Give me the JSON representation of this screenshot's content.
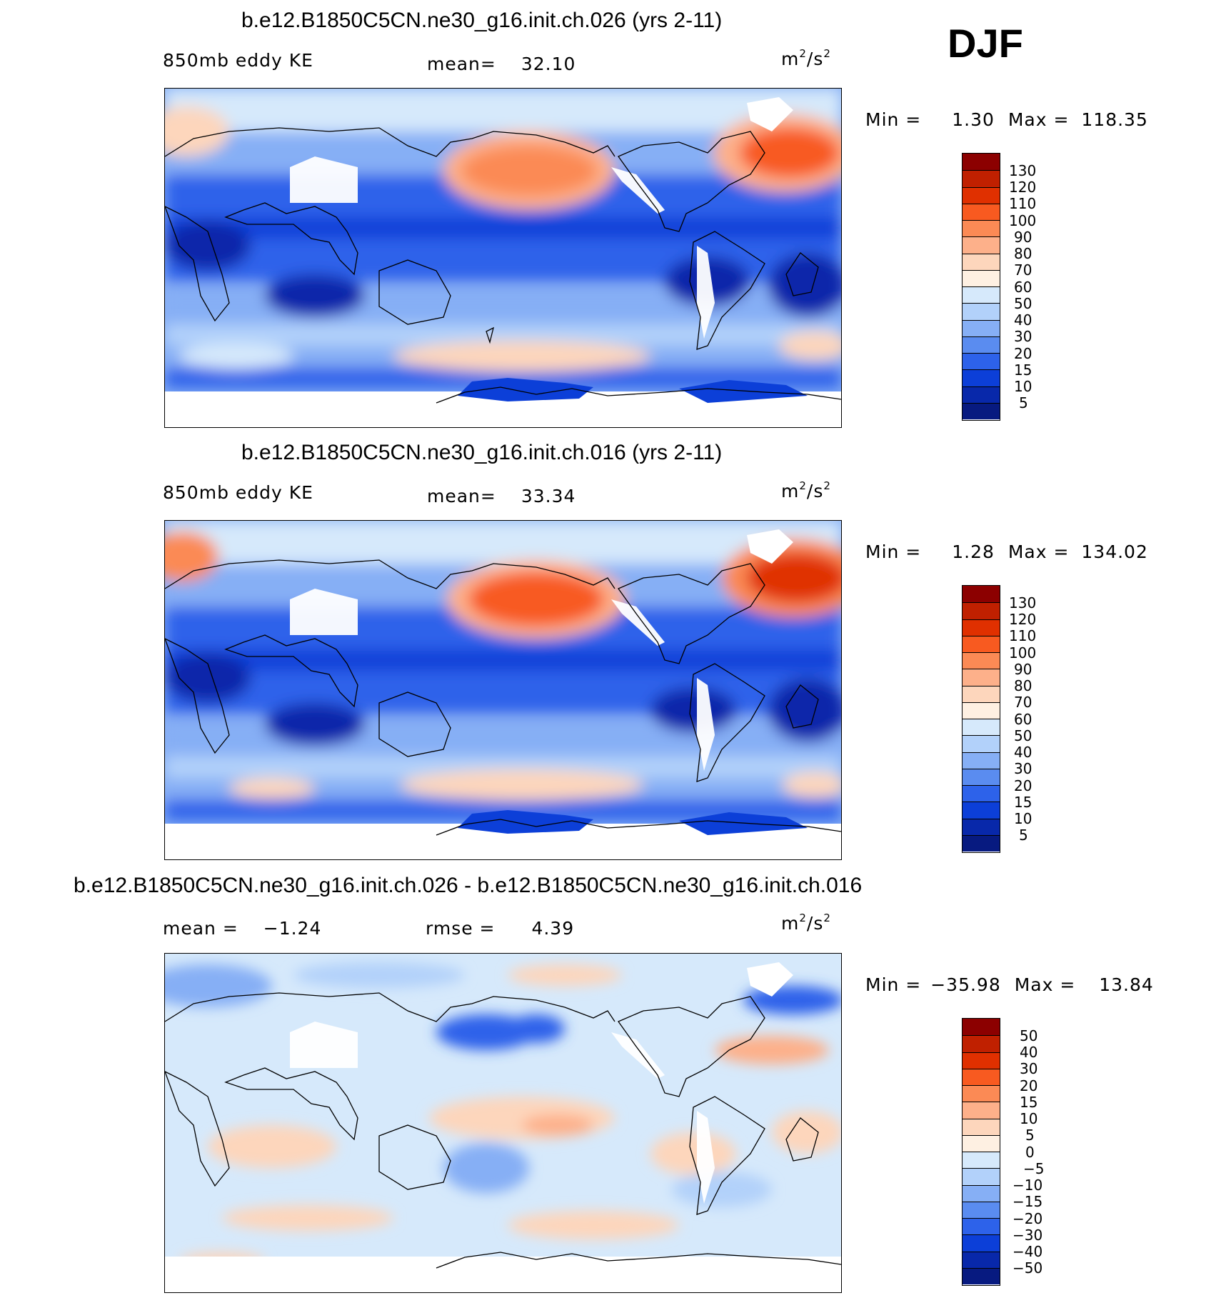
{
  "season": "DJF",
  "panels": [
    {
      "title": "b.e12.B1850C5CN.ne30_g16.init.ch.026 (yrs 2-11)",
      "left_label": "850mb eddy KE",
      "center_label": "mean=",
      "center_value": "32.10",
      "units_base": "m",
      "units_sup1": "2",
      "units_mid": "/s",
      "units_sup2": "2",
      "min_label": "Min =",
      "min_value": "1.30",
      "max_label": "Max =",
      "max_value": "118.35",
      "colorbar": {
        "labels": [
          "130",
          "120",
          "110",
          "100",
          "90",
          "80",
          "70",
          "60",
          "50",
          "40",
          "30",
          "20",
          "15",
          "10",
          "5"
        ],
        "colors": [
          "#8c0000",
          "#c02000",
          "#e03000",
          "#f85a20",
          "#fb8a55",
          "#fdb08a",
          "#fdd6bc",
          "#fef0e2",
          "#d6e9fb",
          "#b2d1fa",
          "#86aff5",
          "#5a8cf0",
          "#2d62ea",
          "#0c3fd8",
          "#0828aa",
          "#071a80"
        ]
      }
    },
    {
      "title": "b.e12.B1850C5CN.ne30_g16.init.ch.016 (yrs 2-11)",
      "left_label": "850mb eddy KE",
      "center_label": "mean=",
      "center_value": "33.34",
      "units_base": "m",
      "units_sup1": "2",
      "units_mid": "/s",
      "units_sup2": "2",
      "min_label": "Min =",
      "min_value": "1.28",
      "max_label": "Max =",
      "max_value": "134.02",
      "colorbar": {
        "labels": [
          "130",
          "120",
          "110",
          "100",
          "90",
          "80",
          "70",
          "60",
          "50",
          "40",
          "30",
          "20",
          "15",
          "10",
          "5"
        ],
        "colors": [
          "#8c0000",
          "#c02000",
          "#e03000",
          "#f85a20",
          "#fb8a55",
          "#fdb08a",
          "#fdd6bc",
          "#fef0e2",
          "#d6e9fb",
          "#b2d1fa",
          "#86aff5",
          "#5a8cf0",
          "#2d62ea",
          "#0c3fd8",
          "#0828aa",
          "#071a80"
        ]
      }
    },
    {
      "title": "b.e12.B1850C5CN.ne30_g16.init.ch.026 - b.e12.B1850C5CN.ne30_g16.init.ch.016",
      "left_label": "mean =",
      "left_value": "−1.24",
      "center_label": "rmse =",
      "center_value": "4.39",
      "units_base": "m",
      "units_sup1": "2",
      "units_mid": "/s",
      "units_sup2": "2",
      "min_label": "Min =",
      "min_value": "−35.98",
      "max_label": "Max =",
      "max_value": "13.84",
      "colorbar": {
        "labels": [
          "50",
          "40",
          "30",
          "20",
          "15",
          "10",
          "5",
          "0",
          "−5",
          "−10",
          "−15",
          "−20",
          "−30",
          "−40",
          "−50"
        ],
        "colors": [
          "#8c0000",
          "#c02000",
          "#e03000",
          "#f85a20",
          "#fb8a55",
          "#fdb08a",
          "#fdd6bc",
          "#fef0e2",
          "#d6e9fb",
          "#b2d1fa",
          "#86aff5",
          "#5a8cf0",
          "#2d62ea",
          "#0c3fd8",
          "#0828aa",
          "#071a80"
        ]
      }
    }
  ]
}
